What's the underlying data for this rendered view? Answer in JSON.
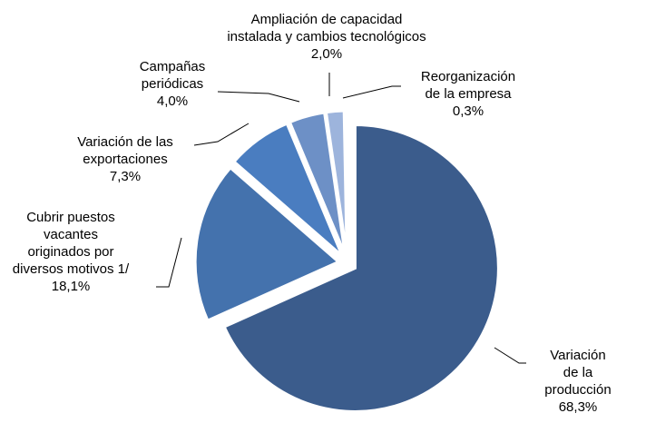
{
  "chart_data": {
    "type": "pie",
    "categories": [
      "Variación de la\nproducción",
      "Cubrir puestos\nvacantes\noriginados por\ndiversos motivos 1/",
      "Variación de las\nexportaciones",
      "Campañas\nperiódicas",
      "Ampliación de capacidad\ninstalada y cambios tecnológicos",
      "Reorganización\nde la empresa"
    ],
    "values": [
      68.3,
      18.1,
      7.3,
      4.0,
      2.0,
      0.3
    ],
    "value_labels": [
      "68,3%",
      "18,1%",
      "7,3%",
      "4,0%",
      "2,0%",
      "0,3%"
    ],
    "colors": [
      "#3b5c8c",
      "#4472ad",
      "#4a7dc0",
      "#6d90c6",
      "#9db4dc",
      "#b9c9e6"
    ]
  }
}
